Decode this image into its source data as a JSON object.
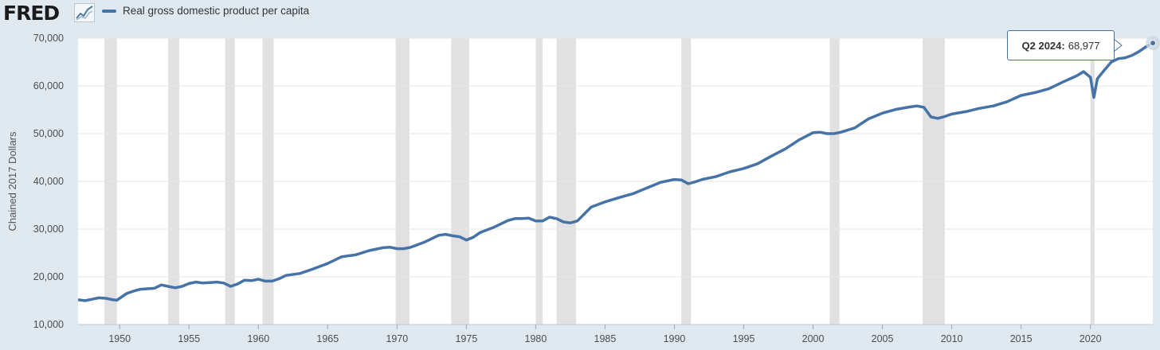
{
  "app": {
    "logo_text": "FRED",
    "logo_icon": "chart-line-icon"
  },
  "tooltip": {
    "period": "Q2 2024:",
    "value": "68,977"
  },
  "colors": {
    "series": "#4572a7",
    "recession": "#e1e1e1",
    "background": "#e1e9f0",
    "plot": "#ffffff",
    "grid": "#e6e6e6"
  },
  "chart_data": {
    "type": "line",
    "title": "",
    "xlabel": "",
    "ylabel": "Chained 2017 Dollars",
    "ylim": [
      10000,
      70000
    ],
    "xlim": [
      1947.0,
      2024.5
    ],
    "yticks": [
      10000,
      20000,
      30000,
      40000,
      50000,
      60000,
      70000
    ],
    "ytick_labels": [
      "10,000",
      "20,000",
      "30,000",
      "40,000",
      "50,000",
      "60,000",
      "70,000"
    ],
    "xticks": [
      1950,
      1955,
      1960,
      1965,
      1970,
      1975,
      1980,
      1985,
      1990,
      1995,
      2000,
      2005,
      2010,
      2015,
      2020
    ],
    "xtick_labels": [
      "1950",
      "1955",
      "1960",
      "1965",
      "1970",
      "1975",
      "1980",
      "1985",
      "1990",
      "1995",
      "2000",
      "2005",
      "2010",
      "2015",
      "2020"
    ],
    "grid": true,
    "legend": "top-left",
    "recessions": [
      [
        1948.9,
        1949.8
      ],
      [
        1953.5,
        1954.3
      ],
      [
        1957.6,
        1958.3
      ],
      [
        1960.3,
        1961.1
      ],
      [
        1969.9,
        1970.9
      ],
      [
        1973.9,
        1975.2
      ],
      [
        1980.0,
        1980.5
      ],
      [
        1981.5,
        1982.9
      ],
      [
        1990.5,
        1991.2
      ],
      [
        2001.2,
        2001.9
      ],
      [
        2007.9,
        2009.5
      ],
      [
        2020.0,
        2020.3
      ]
    ],
    "series": [
      {
        "name": "Real gross domestic product per capita",
        "x": [
          1947.0,
          1947.5,
          1948.0,
          1948.5,
          1949.0,
          1949.5,
          1949.8,
          1950.5,
          1951.0,
          1951.5,
          1952.0,
          1952.5,
          1953.0,
          1953.5,
          1954.0,
          1954.5,
          1955.0,
          1955.5,
          1956.0,
          1956.5,
          1957.0,
          1957.5,
          1958.0,
          1958.5,
          1959.0,
          1959.5,
          1960.0,
          1960.5,
          1961.0,
          1961.5,
          1962.0,
          1963.0,
          1964.0,
          1965.0,
          1966.0,
          1967.0,
          1968.0,
          1969.0,
          1969.5,
          1970.0,
          1970.5,
          1971.0,
          1972.0,
          1973.0,
          1973.5,
          1974.0,
          1974.5,
          1975.0,
          1975.5,
          1976.0,
          1977.0,
          1978.0,
          1978.5,
          1979.0,
          1979.5,
          1980.0,
          1980.5,
          1981.0,
          1981.5,
          1982.0,
          1982.5,
          1983.0,
          1984.0,
          1985.0,
          1986.0,
          1987.0,
          1988.0,
          1989.0,
          1990.0,
          1990.5,
          1991.0,
          1991.5,
          1992.0,
          1993.0,
          1994.0,
          1995.0,
          1996.0,
          1997.0,
          1998.0,
          1999.0,
          2000.0,
          2000.5,
          2001.0,
          2001.5,
          2002.0,
          2003.0,
          2004.0,
          2005.0,
          2006.0,
          2007.0,
          2007.5,
          2008.0,
          2008.5,
          2009.0,
          2009.5,
          2010.0,
          2011.0,
          2012.0,
          2013.0,
          2014.0,
          2015.0,
          2016.0,
          2017.0,
          2018.0,
          2019.0,
          2019.5,
          2020.0,
          2020.25,
          2020.5,
          2021.0,
          2021.5,
          2022.0,
          2022.5,
          2023.0,
          2023.5,
          2024.0,
          2024.5
        ],
        "values": [
          15200,
          15000,
          15300,
          15600,
          15500,
          15200,
          15100,
          16500,
          17000,
          17400,
          17500,
          17600,
          18300,
          18000,
          17700,
          18000,
          18600,
          18900,
          18700,
          18800,
          18900,
          18700,
          18000,
          18500,
          19300,
          19200,
          19500,
          19100,
          19100,
          19600,
          20300,
          20700,
          21700,
          22800,
          24200,
          24600,
          25500,
          26100,
          26200,
          25900,
          25900,
          26200,
          27300,
          28700,
          28900,
          28600,
          28400,
          27700,
          28300,
          29300,
          30400,
          31800,
          32200,
          32200,
          32300,
          31700,
          31700,
          32500,
          32200,
          31500,
          31300,
          31700,
          34600,
          35700,
          36600,
          37400,
          38600,
          39800,
          40400,
          40300,
          39500,
          39900,
          40400,
          41000,
          42000,
          42700,
          43700,
          45300,
          46800,
          48700,
          50200,
          50300,
          50000,
          50000,
          50300,
          51200,
          53100,
          54300,
          55100,
          55600,
          55800,
          55500,
          53500,
          53200,
          53600,
          54100,
          54600,
          55300,
          55800,
          56700,
          58000,
          58600,
          59400,
          60800,
          62100,
          63000,
          61800,
          57600,
          61500,
          63300,
          65000,
          65700,
          65900,
          66400,
          67200,
          68200,
          68977
        ]
      }
    ]
  }
}
